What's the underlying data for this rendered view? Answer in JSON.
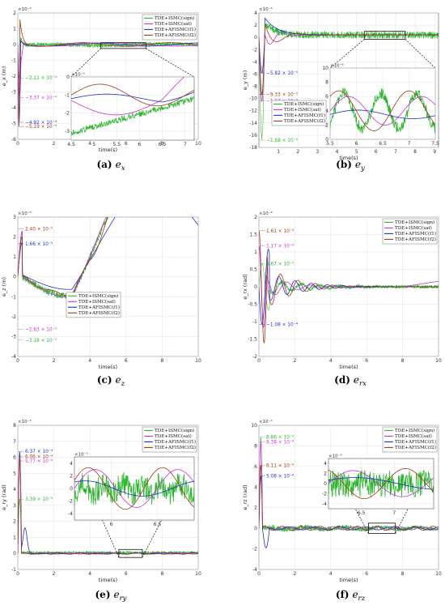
{
  "colors": {
    "sign": "#2db52d",
    "sat": "#c433d6",
    "f1": "#1f2fcf",
    "f2": "#9b3a1a"
  },
  "chart_data": [
    {
      "type": "line",
      "id": "a",
      "caption_label": "(a)",
      "caption_var": "e",
      "caption_sub": "x",
      "xlabel": "time(s)",
      "ylabel": "e_x (m)",
      "exponent": "×10⁻⁴",
      "xlim": [
        0,
        10
      ],
      "ylim": [
        -6,
        2
      ],
      "xticks": [
        0,
        2,
        4,
        6,
        8,
        10
      ],
      "yticks": [
        2,
        1,
        0,
        -1,
        -2,
        -3,
        -4,
        -5,
        -6
      ],
      "legend": "top-right",
      "series": [
        {
          "name": "TDE+ISMC(sign)",
          "key": "sign"
        },
        {
          "name": "TDE+ISMC(sat)",
          "key": "sat"
        },
        {
          "name": "TDE+AFISMC(f1)",
          "key": "f1"
        },
        {
          "name": "TDE+AFISMC(f2)",
          "key": "f2"
        }
      ],
      "annotations": [
        {
          "text": "−2.11 × 10⁻⁴",
          "key": "sign",
          "y": -2.11
        },
        {
          "text": "−3.37 × 10⁻⁴",
          "key": "sat",
          "y": -3.37
        },
        {
          "text": "−4.92 × 10⁻⁴",
          "key": "f1",
          "y": -4.92
        },
        {
          "text": "−5.19 × 10⁻⁴",
          "key": "f2",
          "y": -5.19
        }
      ],
      "inset": {
        "xlim": [
          4.5,
          7.2
        ],
        "ylim": [
          -3.5,
          0
        ],
        "exponent": "×10⁻⁵",
        "xticks": [
          4.5,
          5,
          5.5,
          6,
          6.5,
          7
        ],
        "yticks": [
          0,
          -1,
          -2,
          -3
        ]
      }
    },
    {
      "type": "line",
      "id": "b",
      "caption_label": "(b)",
      "caption_var": "e",
      "caption_sub": "y",
      "xlabel": "time(s)",
      "ylabel": "e_y (m)",
      "exponent": "×10⁻⁵",
      "xlim": [
        0,
        9.2
      ],
      "ylim": [
        -18,
        4
      ],
      "xticks": [
        1,
        2,
        3,
        4,
        5,
        6,
        7,
        8,
        9
      ],
      "yticks": [
        4,
        2,
        0,
        -2,
        -4,
        -6,
        -8,
        -10,
        -12,
        -14,
        -16,
        -18
      ],
      "legend": "inset-left",
      "series": [
        {
          "name": "TDE+ISMC(sign)",
          "key": "sign"
        },
        {
          "name": "TDE+ISMC(sat)",
          "key": "sat"
        },
        {
          "name": "TDE+AFISMC(f1)",
          "key": "f1"
        },
        {
          "name": "TDE+AFISMC(f2)",
          "key": "f2"
        }
      ],
      "annotations": [
        {
          "text": "−5.82 × 10⁻⁵",
          "key": "f1",
          "y": -5.82
        },
        {
          "text": "−9.33 × 10⁻⁵",
          "key": "f2",
          "y": -9.33
        },
        {
          "text": "−1.04 × 10⁻⁴",
          "key": "sat",
          "y": -10.4
        },
        {
          "text": "−1.68 × 10⁻⁴",
          "key": "sign",
          "y": -16.8
        }
      ],
      "inset": {
        "xlim": [
          5.5,
          7.5
        ],
        "ylim": [
          0,
          10
        ],
        "exponent": "×10⁻⁶",
        "xticks": [
          5.5,
          6,
          6.5,
          7,
          7.5
        ],
        "yticks": [
          10,
          8,
          6,
          4,
          2,
          0
        ]
      }
    },
    {
      "type": "line",
      "id": "c",
      "caption_label": "(c)",
      "caption_var": "e",
      "caption_sub": "z",
      "xlabel": "time(s)",
      "ylabel": "e_z (m)",
      "exponent": "×10⁻⁵",
      "xlim": [
        0,
        10
      ],
      "ylim": [
        -4,
        3
      ],
      "xticks": [
        0,
        2,
        4,
        6,
        8,
        10
      ],
      "yticks": [
        3,
        2,
        1,
        0,
        -1,
        -2,
        -3,
        -4
      ],
      "legend": "bottom-left",
      "series": [
        {
          "name": "TDE+ISMC(sign)",
          "key": "sign"
        },
        {
          "name": "TDE+ISMC(sat)",
          "key": "sat"
        },
        {
          "name": "TDE+AFISMC(f1)",
          "key": "f1"
        },
        {
          "name": "TDE+AFISMC(f2)",
          "key": "f2"
        }
      ],
      "annotations": [
        {
          "text": "2.40 × 10⁻⁵",
          "key": "f2",
          "y": 2.4
        },
        {
          "text": "1.66 × 10⁻⁵",
          "key": "f1",
          "y": 1.66
        },
        {
          "text": "−2.63 × 10⁻⁵",
          "key": "sat",
          "y": -2.63
        },
        {
          "text": "−3.18 × 10⁻⁵",
          "key": "sign",
          "y": -3.18
        }
      ]
    },
    {
      "type": "line",
      "id": "d",
      "caption_label": "(d)",
      "caption_var": "e",
      "caption_sub": "rx",
      "xlabel": "time(s)",
      "ylabel": "e_rx (rad)",
      "exponent": "×10⁻⁴",
      "xlim": [
        0,
        10
      ],
      "ylim": [
        -2,
        2
      ],
      "xticks": [
        0,
        2,
        4,
        6,
        8,
        10
      ],
      "yticks": [
        2,
        1.5,
        1,
        0.5,
        0,
        -0.5,
        -1,
        -1.5,
        -2
      ],
      "legend": "top-right",
      "series": [
        {
          "name": "TDE+ISMC(sign)",
          "key": "sign"
        },
        {
          "name": "TDE+ISMC(sat)",
          "key": "sat"
        },
        {
          "name": "TDE+AFISMC(f1)",
          "key": "f1"
        },
        {
          "name": "TDE+AFISMC(f2)",
          "key": "f2"
        }
      ],
      "annotations": [
        {
          "text": "1.61 × 10⁻⁴",
          "key": "f2",
          "y": 1.61
        },
        {
          "text": "1.17 × 10⁻⁴",
          "key": "sat",
          "y": 1.17
        },
        {
          "text": "6.67 × 10⁻⁵",
          "key": "sign",
          "y": 0.667
        },
        {
          "text": "−1.08 × 10⁻⁴",
          "key": "f1",
          "y": -1.08
        }
      ]
    },
    {
      "type": "line",
      "id": "e",
      "caption_label": "(e)",
      "caption_var": "e",
      "caption_sub": "ry",
      "xlabel": "time(s)",
      "ylabel": "e_ry (rad)",
      "exponent": "×10⁻⁴",
      "xlim": [
        0,
        10
      ],
      "ylim": [
        -1,
        8
      ],
      "xticks": [
        0,
        2,
        4,
        6,
        8,
        10
      ],
      "yticks": [
        8,
        7,
        6,
        5,
        4,
        3,
        2,
        1,
        0,
        -1
      ],
      "legend": "top-right",
      "series": [
        {
          "name": "TDE+ISMC(sign)",
          "key": "sign"
        },
        {
          "name": "TDE+ISMC(sat)",
          "key": "sat"
        },
        {
          "name": "TDE+AFISMC(f1)",
          "key": "f1"
        },
        {
          "name": "TDE+AFISMC(f2)",
          "key": "f2"
        }
      ],
      "annotations": [
        {
          "text": "6.37 × 10⁻⁴",
          "key": "f1",
          "y": 6.37
        },
        {
          "text": "6.06 × 10⁻⁴",
          "key": "f2",
          "y": 6.06
        },
        {
          "text": "5.77 × 10⁻⁴",
          "key": "sat",
          "y": 5.77
        },
        {
          "text": "3.39 × 10⁻⁴",
          "key": "sign",
          "y": 3.39
        }
      ],
      "inset": {
        "xlim": [
          5.6,
          6.9
        ],
        "ylim": [
          -5,
          5
        ],
        "exponent": "×10⁻⁵",
        "xticks": [
          6,
          6.5
        ],
        "yticks": [
          4,
          2,
          0,
          -2,
          -4
        ]
      }
    },
    {
      "type": "line",
      "id": "f",
      "caption_label": "(f)",
      "caption_var": "e",
      "caption_sub": "rz",
      "xlabel": "time(s)",
      "ylabel": "e_rz (rad)",
      "exponent": "×10⁻⁴",
      "xlim": [
        0,
        10
      ],
      "ylim": [
        -4,
        10
      ],
      "xticks": [
        0,
        2,
        4,
        6,
        8,
        10
      ],
      "yticks": [
        10,
        8,
        6,
        4,
        2,
        0,
        -2,
        -4
      ],
      "legend": "top-right",
      "series": [
        {
          "name": "TDE+ISMC(sign)",
          "key": "sign"
        },
        {
          "name": "TDE+ISMC(sat)",
          "key": "sat"
        },
        {
          "name": "TDE+AFISMC(f1)",
          "key": "f1"
        },
        {
          "name": "TDE+AFISMC(f2)",
          "key": "f2"
        }
      ],
      "annotations": [
        {
          "text": "8.86 × 10⁻⁴",
          "key": "sign",
          "y": 8.86
        },
        {
          "text": "8.38 × 10⁻⁴",
          "key": "sat",
          "y": 8.38
        },
        {
          "text": "6.11 × 10⁻⁴",
          "key": "f2",
          "y": 6.11
        },
        {
          "text": "5.08 × 10⁻⁴",
          "key": "f1",
          "y": 5.08
        }
      ],
      "inset": {
        "xlim": [
          6.0,
          7.6
        ],
        "ylim": [
          -5,
          5
        ],
        "exponent": "×10⁻⁵",
        "xticks": [
          6.5,
          7
        ],
        "yticks": [
          4,
          2,
          0,
          -2,
          -4
        ]
      }
    }
  ]
}
